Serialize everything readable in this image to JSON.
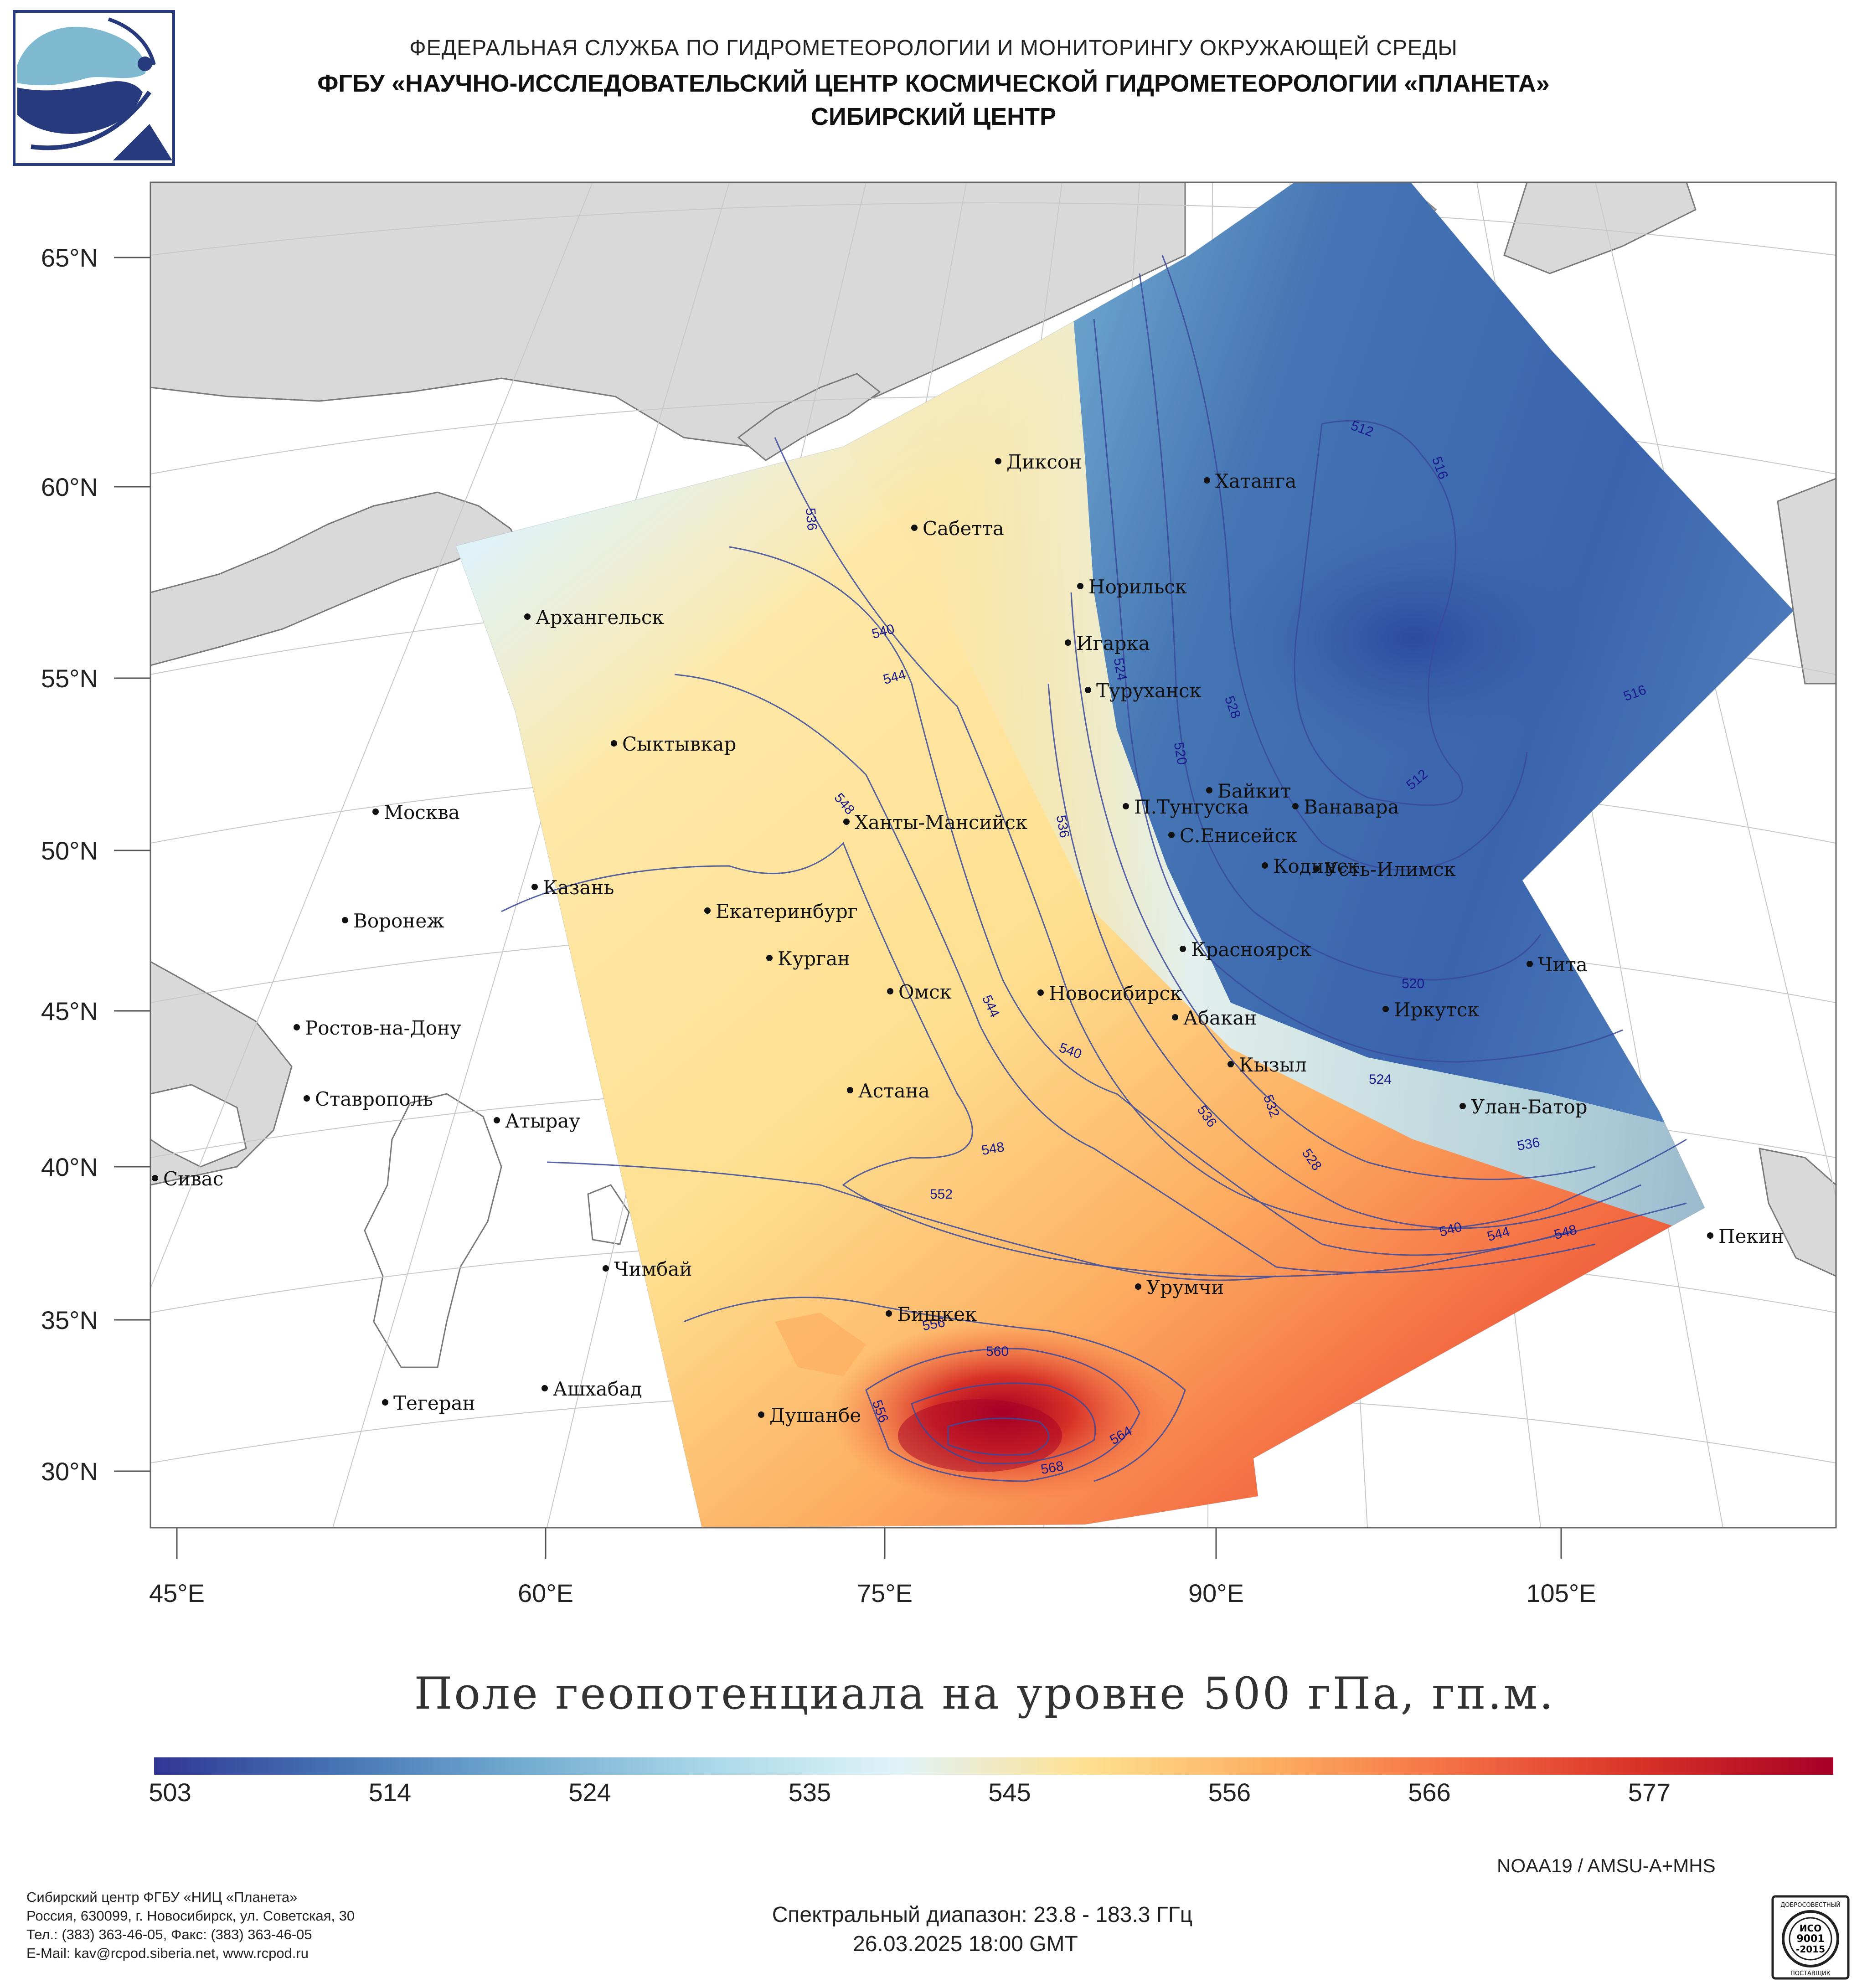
{
  "header": {
    "line1": "ФЕДЕРАЛЬНАЯ СЛУЖБА ПО ГИДРОМЕТЕОРОЛОГИИ И МОНИТОРИНГУ ОКРУЖАЮЩЕЙ СРЕДЫ",
    "line2": "ФГБУ «НАУЧНО-ИССЛЕДОВАТЕЛЬСКИЙ ЦЕНТР КОСМИЧЕСКОЙ ГИДРОМЕТЕОРОЛОГИИ «ПЛАНЕТА»",
    "line3": "СИБИРСКИЙ ЦЕНТР"
  },
  "map": {
    "lat_labels": [
      "65°N",
      "60°N",
      "55°N",
      "50°N",
      "45°N",
      "40°N",
      "35°N",
      "30°N"
    ],
    "lon_labels": [
      "45°E",
      "60°E",
      "75°E",
      "90°E",
      "105°E"
    ],
    "cities": [
      {
        "name": "Диксон",
        "lon": 80.5,
        "lat": 73.5
      },
      {
        "name": "Хатанга",
        "lon": 102.5,
        "lat": 72.0
      },
      {
        "name": "Сабетта",
        "lon": 72.0,
        "lat": 71.3
      },
      {
        "name": "Норильск",
        "lon": 88.2,
        "lat": 69.3
      },
      {
        "name": "Архангельск",
        "lon": 40.5,
        "lat": 64.5
      },
      {
        "name": "Игарка",
        "lon": 86.6,
        "lat": 67.5
      },
      {
        "name": "Туруханск",
        "lon": 87.9,
        "lat": 65.8
      },
      {
        "name": "Сыктывкар",
        "lon": 50.8,
        "lat": 61.7
      },
      {
        "name": "Байкит",
        "lon": 96.4,
        "lat": 61.7
      },
      {
        "name": "П.Тунгуска",
        "lon": 90.0,
        "lat": 61.0
      },
      {
        "name": "Ванавара",
        "lon": 102.3,
        "lat": 60.3
      },
      {
        "name": "Москва",
        "lon": 37.6,
        "lat": 55.8
      },
      {
        "name": "Ханты-Мансийск",
        "lon": 69.0,
        "lat": 61.0
      },
      {
        "name": "С.Енисейск",
        "lon": 92.5,
        "lat": 58.5
      },
      {
        "name": "Кодинск",
        "lon": 99.2,
        "lat": 58.7
      },
      {
        "name": "Усть-Илимск",
        "lon": 102.7,
        "lat": 58.0
      },
      {
        "name": "Казань",
        "lon": 49.1,
        "lat": 55.8
      },
      {
        "name": "Воронеж",
        "lon": 39.2,
        "lat": 51.7
      },
      {
        "name": "Екатеринбург",
        "lon": 60.6,
        "lat": 56.8
      },
      {
        "name": "Курган",
        "lon": 65.3,
        "lat": 55.4
      },
      {
        "name": "Красноярск",
        "lon": 92.9,
        "lat": 56.0
      },
      {
        "name": "Омск",
        "lon": 73.4,
        "lat": 55.0
      },
      {
        "name": "Новосибирск",
        "lon": 82.9,
        "lat": 55.0
      },
      {
        "name": "Чита",
        "lon": 113.5,
        "lat": 52.0
      },
      {
        "name": "Ростов-на-Дону",
        "lon": 39.7,
        "lat": 47.2
      },
      {
        "name": "Абакан",
        "lon": 91.4,
        "lat": 53.7
      },
      {
        "name": "Иркутск",
        "lon": 104.3,
        "lat": 52.3
      },
      {
        "name": "Кызыл",
        "lon": 94.4,
        "lat": 51.7
      },
      {
        "name": "Ставрополь",
        "lon": 42.0,
        "lat": 45.0
      },
      {
        "name": "Атырау",
        "lon": 51.9,
        "lat": 47.1
      },
      {
        "name": "Астана",
        "lon": 71.4,
        "lat": 51.2
      },
      {
        "name": "Улан-Батор",
        "lon": 106.9,
        "lat": 47.9
      },
      {
        "name": "Сивас",
        "lon": 37.0,
        "lat": 39.7
      },
      {
        "name": "Пекин",
        "lon": 116.4,
        "lat": 39.9
      },
      {
        "name": "Чимбай",
        "lon": 59.8,
        "lat": 42.9
      },
      {
        "name": "Урумчи",
        "lon": 87.6,
        "lat": 43.8
      },
      {
        "name": "Бишкек",
        "lon": 74.6,
        "lat": 42.9
      },
      {
        "name": "Ашхабад",
        "lon": 58.4,
        "lat": 37.9
      },
      {
        "name": "Тегеран",
        "lon": 51.4,
        "lat": 35.7
      },
      {
        "name": "Душанбе",
        "lon": 68.8,
        "lat": 38.6
      }
    ],
    "contour_labels": [
      "512",
      "516",
      "536",
      "540",
      "544",
      "524",
      "528",
      "516",
      "520",
      "512",
      "548",
      "536",
      "544",
      "540",
      "520",
      "524",
      "532",
      "536",
      "528",
      "536",
      "548",
      "552",
      "540",
      "544",
      "548",
      "556",
      "560",
      "556",
      "564",
      "568"
    ]
  },
  "title": "Поле геопотенциала на уровне 500 гПа, гп.м.",
  "colorbar": {
    "min": 503,
    "max": 587,
    "tick_values": [
      503,
      514,
      524,
      535,
      545,
      556,
      566,
      577
    ],
    "tick_labels": [
      "503",
      "514",
      "524",
      "535",
      "545",
      "556",
      "566",
      "577"
    ],
    "colors": [
      "#313695",
      "#4575b4",
      "#74add1",
      "#abd9e9",
      "#e0f3f8",
      "#fee090",
      "#fdae61",
      "#f46d43",
      "#d73027",
      "#a50026"
    ]
  },
  "sensor": "NOAA19 / AMSU-A+MHS",
  "spectral": "Спектральный диапазон: 23.8 - 183.3 ГГц",
  "datetime": "26.03.2025 18:00 GMT",
  "footer": {
    "line1": "Сибирский центр ФГБУ «НИЦ «Планета»",
    "line2": "Россия, 630099, г. Новосибирск, ул. Советская, 30",
    "line3": "Тел.: (383) 363-46-05, Факс: (383) 363-46-05",
    "line4": "E-Mail: kav@rcpod.siberia.net, www.rcpod.ru"
  },
  "iso_badge": {
    "line1": "ДОБРОСОВЕСТНЫЙ",
    "line2": "ИСО",
    "line3": "9001",
    "line4": "-2015",
    "line5": "ПОСТАВЩИК"
  },
  "colors": {
    "land": "#d9d9d9",
    "sea": "#ffffff",
    "grid": "#b8b8b8",
    "contour": "#3a4a9c",
    "contour_label": "#1a1a8c"
  }
}
